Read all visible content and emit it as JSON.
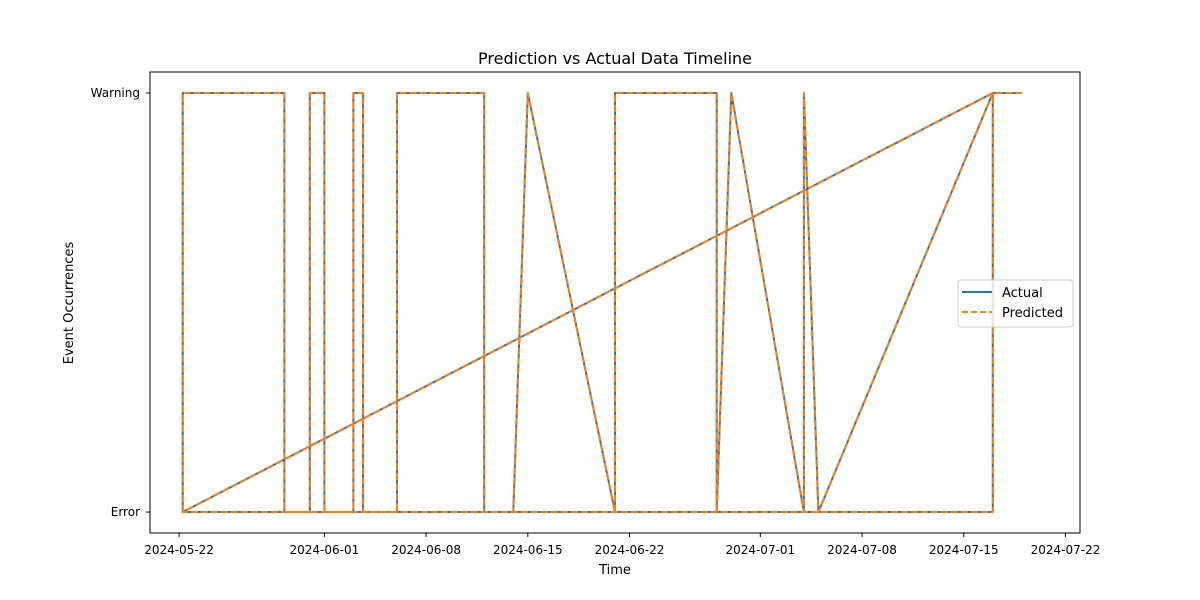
{
  "chart_data": {
    "type": "line",
    "title": "Prediction vs Actual Data Timeline",
    "xlabel": "Time",
    "ylabel": "Event Occurrences",
    "y_categories": [
      "Error",
      "Warning"
    ],
    "x_ticks": [
      "2024-05-22",
      "2024-06-01",
      "2024-06-08",
      "2024-06-15",
      "2024-06-22",
      "2024-07-01",
      "2024-07-08",
      "2024-07-15",
      "2024-07-22"
    ],
    "xlim": [
      "2024-05-20T00:00",
      "2024-07-23T00:00"
    ],
    "ylim": [
      -0.05,
      1.05
    ],
    "grid": false,
    "legend": {
      "position": "center-right",
      "entries": [
        "Actual",
        "Predicted"
      ]
    },
    "series": [
      {
        "name": "Actual",
        "color": "#1f77b4",
        "style": "solid",
        "x": [
          "2024-05-22T06:00",
          "2024-05-22T06:00",
          "2024-05-29T06:00",
          "2024-05-29T06:00",
          "2024-05-31T00:00",
          "2024-05-31T00:00",
          "2024-06-01T00:00",
          "2024-06-01T00:00",
          "2024-06-03T00:00",
          "2024-06-03T00:00",
          "2024-06-03T16:00",
          "2024-06-03T16:00",
          "2024-06-06T00:00",
          "2024-06-06T00:00",
          "2024-06-12T00:00",
          "2024-06-12T00:00",
          "2024-06-14T00:00",
          "2024-06-15T00:00",
          "2024-06-21T00:00",
          "2024-06-21T00:00",
          "2024-06-28T00:00",
          "2024-06-28T00:00",
          "2024-06-29T00:00",
          "2024-07-04T00:00",
          "2024-07-04T00:00",
          "2024-07-05T00:00",
          "2024-07-17T00:00",
          "2024-07-17T00:00",
          "2024-05-22T06:00",
          "2024-07-17T00:00",
          "2024-07-19T00:00"
        ],
        "y": [
          "Error",
          "Warning",
          "Warning",
          "Error",
          "Error",
          "Warning",
          "Warning",
          "Error",
          "Error",
          "Warning",
          "Warning",
          "Error",
          "Error",
          "Warning",
          "Warning",
          "Error",
          "Error",
          "Warning",
          "Error",
          "Warning",
          "Warning",
          "Error",
          "Warning",
          "Error",
          "Warning",
          "Error",
          "Warning",
          "Error",
          "Error",
          "Warning",
          "Warning"
        ]
      },
      {
        "name": "Predicted",
        "color": "#ff7f0e",
        "style": "dashed",
        "x": [
          "2024-05-22T06:00",
          "2024-05-22T06:00",
          "2024-05-29T06:00",
          "2024-05-29T06:00",
          "2024-05-31T00:00",
          "2024-05-31T00:00",
          "2024-06-01T00:00",
          "2024-06-01T00:00",
          "2024-06-03T00:00",
          "2024-06-03T00:00",
          "2024-06-03T16:00",
          "2024-06-03T16:00",
          "2024-06-06T00:00",
          "2024-06-06T00:00",
          "2024-06-12T00:00",
          "2024-06-12T00:00",
          "2024-06-14T00:00",
          "2024-06-15T00:00",
          "2024-06-21T00:00",
          "2024-06-21T00:00",
          "2024-06-28T00:00",
          "2024-06-28T00:00",
          "2024-06-29T00:00",
          "2024-07-04T00:00",
          "2024-07-04T00:00",
          "2024-07-05T00:00",
          "2024-07-17T00:00",
          "2024-07-17T00:00",
          "2024-05-22T06:00",
          "2024-07-17T00:00",
          "2024-07-19T00:00"
        ],
        "y": [
          "Error",
          "Warning",
          "Warning",
          "Error",
          "Error",
          "Warning",
          "Warning",
          "Error",
          "Error",
          "Warning",
          "Warning",
          "Error",
          "Error",
          "Warning",
          "Warning",
          "Error",
          "Error",
          "Warning",
          "Error",
          "Warning",
          "Warning",
          "Error",
          "Warning",
          "Error",
          "Warning",
          "Error",
          "Warning",
          "Error",
          "Error",
          "Warning",
          "Warning"
        ]
      }
    ]
  }
}
